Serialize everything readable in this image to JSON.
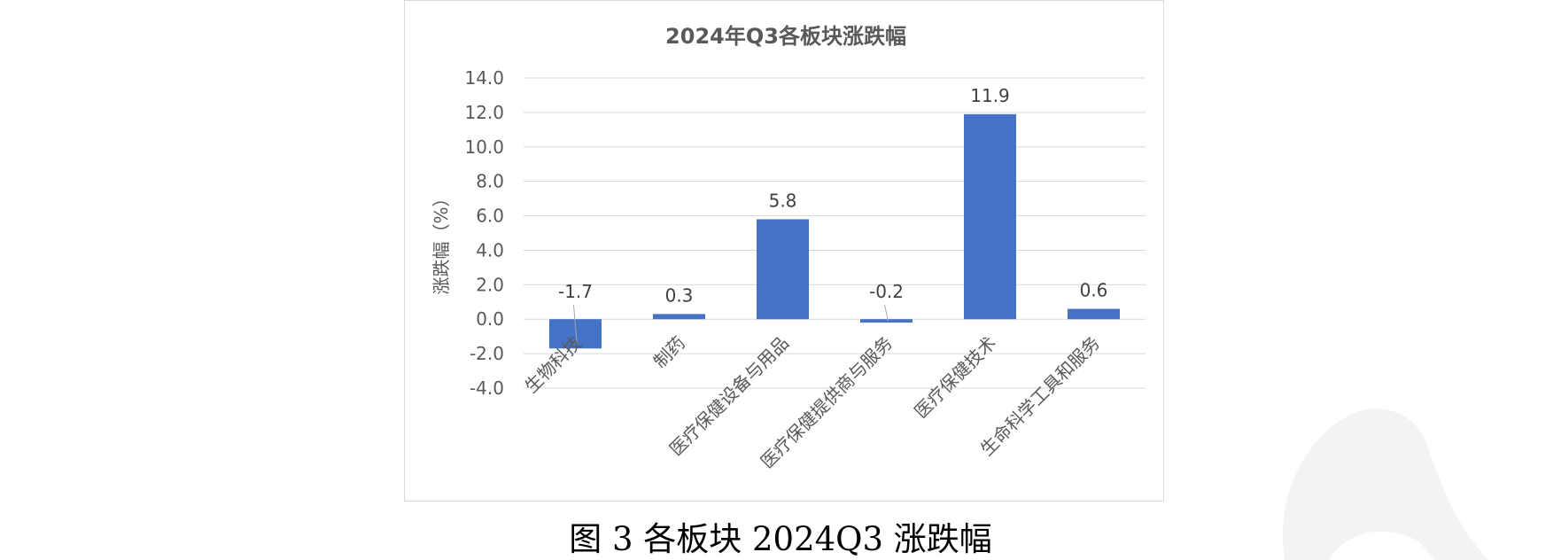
{
  "figure": {
    "caption": "图 3  各板块 2024Q3 涨跌幅"
  },
  "chart_data": {
    "type": "bar",
    "title": "2024年Q3各板块涨跌幅",
    "xlabel": "",
    "ylabel": "涨跌幅（%）",
    "categories": [
      "生物科技",
      "制药",
      "医疗保健设备与用品",
      "医疗保健提供商与服务",
      "医疗保健技术",
      "生命科学工具和服务"
    ],
    "values": [
      -1.7,
      0.3,
      5.8,
      -0.2,
      11.9,
      0.6
    ],
    "data_labels": [
      "-1.7",
      "0.3",
      "5.8",
      "-0.2",
      "11.9",
      "0.6"
    ],
    "ylim": [
      -4.0,
      14.0
    ],
    "yticks": [
      "14.0",
      "12.0",
      "10.0",
      "8.0",
      "6.0",
      "4.0",
      "2.0",
      "0.0",
      "-2.0",
      "-4.0"
    ],
    "ytick_values": [
      14,
      12,
      10,
      8,
      6,
      4,
      2,
      0,
      -2,
      -4
    ],
    "grid": true,
    "legend": "none",
    "colors": {
      "bar": "#4472C4",
      "grid": "#d9d9d9",
      "text": "#595959",
      "title": "#595959"
    }
  }
}
